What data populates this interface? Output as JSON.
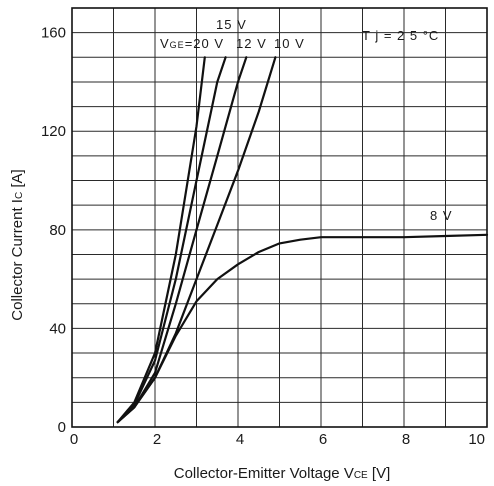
{
  "chart_data": {
    "type": "line",
    "xlabel": "Collector-Emitter Voltage V",
    "xlabel_sub": "CE",
    "xlabel_unit": " [V]",
    "ylabel": "Collector Current I",
    "ylabel_sub": "C",
    "ylabel_unit": " [A]",
    "xlim": [
      0,
      10
    ],
    "ylim": [
      0,
      170
    ],
    "x_ticks": [
      {
        "value": 0,
        "label": "0"
      },
      {
        "value": 2,
        "label": "2"
      },
      {
        "value": 4,
        "label": "4"
      },
      {
        "value": 6,
        "label": "6"
      },
      {
        "value": 8,
        "label": "8"
      },
      {
        "value": 10,
        "label": "10"
      }
    ],
    "y_ticks": [
      {
        "value": 0,
        "label": "0"
      },
      {
        "value": 40,
        "label": "40"
      },
      {
        "value": 80,
        "label": "80"
      },
      {
        "value": 120,
        "label": "120"
      },
      {
        "value": 160,
        "label": "160"
      }
    ],
    "grid": true,
    "grid_x_step": 1,
    "grid_y_step": 10,
    "condition": "T j = 2 5 °C",
    "gate_voltage_prefix": "V",
    "gate_voltage_prefix_sub": "GE",
    "series": [
      {
        "name": "=20 V",
        "x": [
          1.1,
          1.5,
          2.0,
          2.5,
          3.0,
          3.2
        ],
        "y": [
          2,
          10,
          30,
          70,
          122,
          150
        ]
      },
      {
        "name": "15 V",
        "x": [
          1.1,
          1.5,
          2.0,
          2.5,
          3.0,
          3.5,
          3.7
        ],
        "y": [
          2,
          9,
          27,
          60,
          100,
          140,
          150
        ]
      },
      {
        "name": "12 V",
        "x": [
          1.1,
          1.5,
          2.0,
          2.5,
          3.0,
          3.5,
          4.0,
          4.2
        ],
        "y": [
          2,
          8,
          22,
          50,
          80,
          110,
          140,
          150
        ]
      },
      {
        "name": "10 V",
        "x": [
          1.1,
          1.5,
          2.0,
          2.5,
          3.0,
          3.5,
          4.0,
          4.5,
          4.9
        ],
        "y": [
          2,
          8,
          20,
          38,
          60,
          82,
          104,
          128,
          150
        ]
      },
      {
        "name": "8 V",
        "x": [
          1.1,
          1.5,
          2.0,
          2.5,
          3.0,
          3.5,
          4.0,
          4.5,
          5.0,
          5.5,
          6.0,
          7.0,
          8.0,
          9.0,
          10.0
        ],
        "y": [
          2,
          8,
          20,
          37,
          51,
          60,
          66,
          71,
          74.5,
          76,
          77,
          77,
          77,
          77.5,
          78
        ]
      }
    ]
  }
}
